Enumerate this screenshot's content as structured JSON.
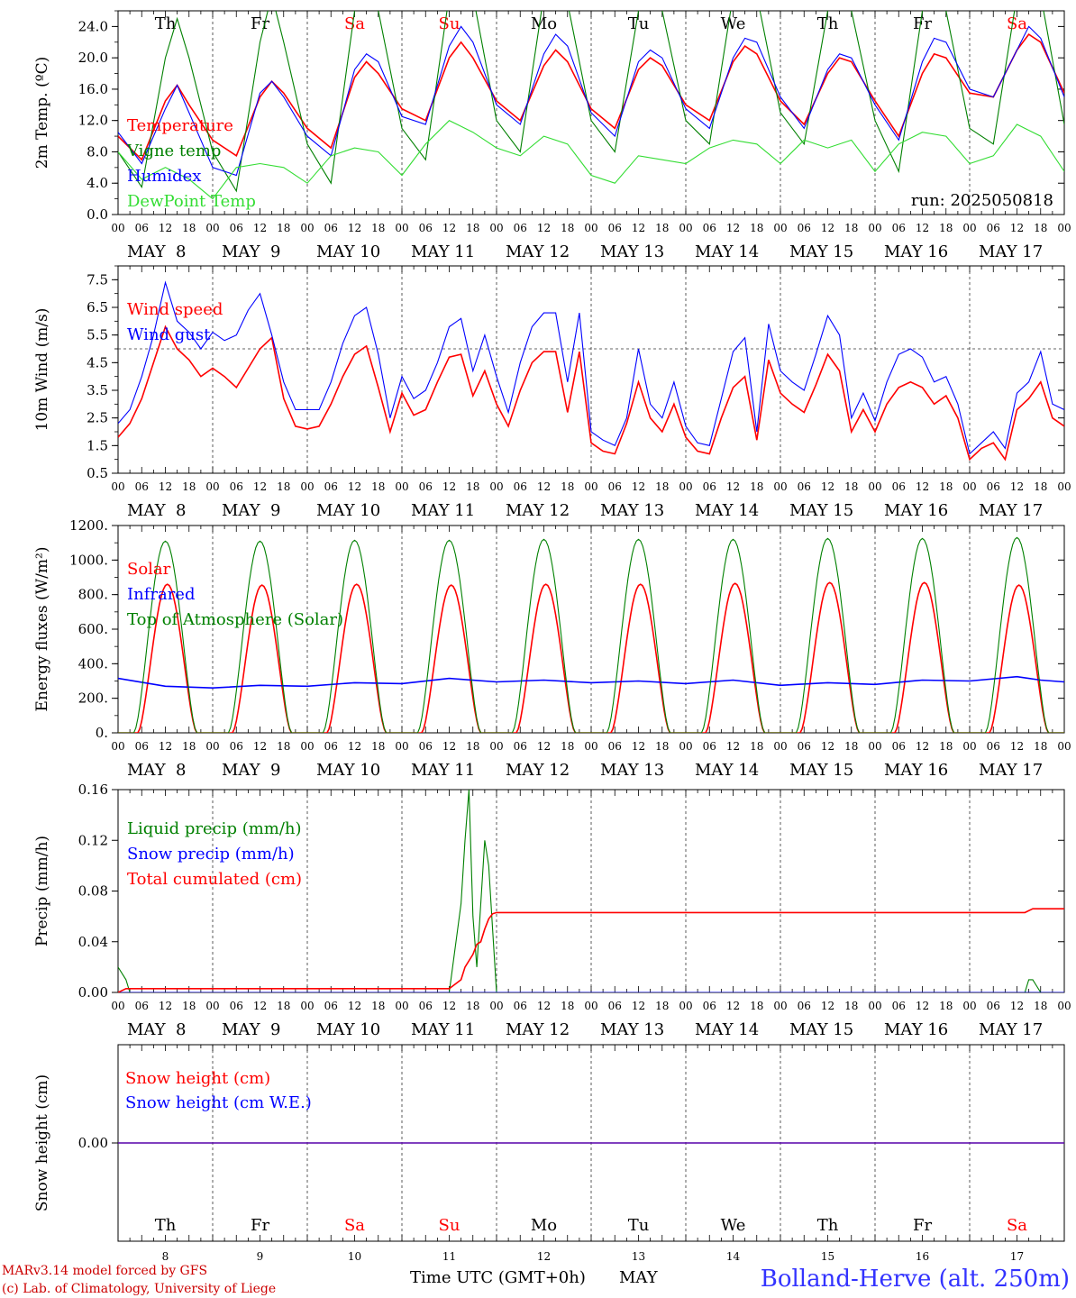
{
  "meta": {
    "run_label": "run: 2025050818",
    "footer_model": "MARv3.14 model forced by GFS",
    "footer_lab": "(c) Lab. of Climatology, University of Liege",
    "time_axis_label": "Time UTC (GMT+0h)",
    "month_label": "MAY",
    "station": "Bolland-Herve (alt. 250m)",
    "hour_labels": [
      "00",
      "06",
      "12",
      "18"
    ],
    "day_labels": [
      "MAY  8",
      "MAY  9",
      "MAY 10",
      "MAY 11",
      "MAY 12",
      "MAY 13",
      "MAY 14",
      "MAY 15",
      "MAY 16",
      "MAY 17"
    ],
    "weekdays": [
      "Th",
      "Fr",
      "Sa",
      "Su",
      "Mo",
      "Tu",
      "We",
      "Th",
      "Fr",
      "Sa"
    ],
    "weekend_flags": [
      false,
      false,
      true,
      true,
      false,
      false,
      false,
      false,
      false,
      true
    ],
    "day_numbers": [
      "8",
      "9",
      "10",
      "11",
      "12",
      "13",
      "14",
      "15",
      "16",
      "17"
    ]
  },
  "colors": {
    "red": "#ff0000",
    "green": "#008000",
    "blue": "#0000ff",
    "lightgreen": "#33dd33",
    "weekend": "#ff0000",
    "footer": "#cc0000",
    "station": "#3333ff"
  },
  "chart_data": [
    {
      "type": "line",
      "ylabel": "2m Temp. (ºC)",
      "ylim": [
        0,
        26
      ],
      "yticks": [
        0,
        4,
        8,
        12,
        16,
        20,
        24
      ],
      "ytick_labels": [
        "0.0",
        "4.0",
        "8.0",
        "12.0",
        "16.0",
        "20.0",
        "24.0"
      ],
      "x_unit": "hours since May 8 00 UTC",
      "xlim": [
        0,
        240
      ],
      "series": [
        {
          "name": "Temperature",
          "color": "red",
          "x": [
            0,
            6,
            12,
            15,
            18,
            24,
            30,
            36,
            39,
            42,
            48,
            54,
            60,
            63,
            66,
            72,
            78,
            84,
            87,
            90,
            96,
            102,
            108,
            111,
            114,
            120,
            126,
            132,
            135,
            138,
            144,
            150,
            156,
            159,
            162,
            168,
            174,
            180,
            183,
            186,
            192,
            198,
            204,
            207,
            210,
            216,
            222,
            228,
            231,
            234,
            240
          ],
          "values": [
            10.0,
            7.0,
            14.5,
            16.5,
            14.0,
            9.5,
            7.5,
            15.0,
            17.0,
            15.5,
            11.0,
            8.5,
            17.5,
            19.5,
            18.0,
            13.5,
            12.0,
            20.0,
            22.0,
            20.0,
            14.5,
            12.0,
            19.0,
            21.0,
            19.5,
            13.5,
            11.0,
            18.5,
            20.0,
            19.0,
            14.0,
            12.0,
            19.5,
            21.5,
            20.5,
            14.5,
            11.5,
            18.0,
            20.0,
            19.5,
            14.5,
            10.0,
            18.0,
            20.5,
            20.0,
            15.5,
            15.0,
            21.0,
            23.0,
            22.0,
            15.5
          ]
        },
        {
          "name": "Vigne temp",
          "color": "green",
          "x": [
            0,
            6,
            12,
            15,
            18,
            24,
            30,
            36,
            39,
            42,
            48,
            54,
            60,
            63,
            66,
            72,
            78,
            84,
            87,
            90,
            96,
            102,
            108,
            111,
            114,
            120,
            126,
            132,
            135,
            138,
            144,
            150,
            156,
            159,
            162,
            168,
            174,
            180,
            183,
            186,
            192,
            198,
            204,
            207,
            210,
            216,
            222,
            228,
            231,
            234,
            240
          ],
          "values": [
            8.0,
            3.5,
            20.0,
            25.0,
            20.0,
            8.0,
            3.0,
            22.0,
            28.0,
            22.0,
            9.0,
            4.0,
            26.0,
            30.0,
            26.0,
            11.0,
            7.0,
            28.0,
            32.0,
            28.0,
            12.0,
            8.0,
            28.0,
            31.0,
            27.0,
            12.0,
            8.0,
            26.0,
            30.0,
            26.0,
            12.0,
            9.0,
            28.0,
            32.0,
            28.0,
            13.0,
            9.0,
            26.0,
            30.0,
            26.0,
            12.0,
            5.5,
            26.0,
            30.0,
            26.0,
            11.0,
            9.0,
            28.0,
            32.0,
            28.0,
            11.5
          ]
        },
        {
          "name": "Humidex",
          "color": "blue",
          "x": [
            0,
            6,
            12,
            15,
            18,
            24,
            30,
            36,
            39,
            42,
            48,
            54,
            60,
            63,
            66,
            72,
            78,
            84,
            87,
            90,
            96,
            102,
            108,
            111,
            114,
            120,
            126,
            132,
            135,
            138,
            144,
            150,
            156,
            159,
            162,
            168,
            174,
            180,
            183,
            186,
            192,
            198,
            204,
            207,
            210,
            216,
            222,
            228,
            231,
            234,
            240
          ],
          "values": [
            10.5,
            6.5,
            13.5,
            16.5,
            13.0,
            6.0,
            5.0,
            15.5,
            17.0,
            15.0,
            10.0,
            7.5,
            18.5,
            20.5,
            19.5,
            12.5,
            11.5,
            21.5,
            24.0,
            22.0,
            14.0,
            11.5,
            20.5,
            23.0,
            21.5,
            13.0,
            10.0,
            19.5,
            21.0,
            20.0,
            13.5,
            11.0,
            20.0,
            22.5,
            22.0,
            15.0,
            11.0,
            18.5,
            20.5,
            20.0,
            14.0,
            9.5,
            19.5,
            22.5,
            22.0,
            16.0,
            15.0,
            21.0,
            24.0,
            22.5,
            15.0
          ]
        },
        {
          "name": "DewPoint Temp",
          "color": "lightgreen",
          "x": [
            0,
            6,
            12,
            18,
            24,
            30,
            36,
            42,
            48,
            54,
            60,
            66,
            72,
            78,
            84,
            90,
            96,
            102,
            108,
            114,
            120,
            126,
            132,
            138,
            144,
            150,
            156,
            162,
            168,
            174,
            180,
            186,
            192,
            198,
            204,
            210,
            216,
            222,
            228,
            234,
            240
          ],
          "values": [
            8.0,
            4.5,
            6.0,
            4.5,
            2.0,
            6.0,
            6.5,
            6.0,
            4.0,
            7.5,
            8.5,
            8.0,
            5.0,
            9.0,
            12.0,
            10.5,
            8.5,
            7.5,
            10.0,
            9.0,
            5.0,
            4.0,
            7.5,
            7.0,
            6.5,
            8.5,
            9.5,
            9.0,
            6.5,
            9.5,
            8.5,
            9.5,
            5.5,
            9.0,
            10.5,
            10.0,
            6.5,
            7.5,
            11.5,
            10.0,
            5.5
          ]
        }
      ]
    },
    {
      "type": "line",
      "ylabel": "10m Wind (m/s)",
      "ylim": [
        0.5,
        8.0
      ],
      "yticks": [
        0.5,
        1.5,
        2.5,
        3.5,
        4.5,
        5.5,
        6.5,
        7.5
      ],
      "ytick_labels": [
        "0.5",
        "1.5",
        "2.5",
        "3.5",
        "4.5",
        "5.5",
        "6.5",
        "7.5"
      ],
      "reference_line": 5.0,
      "xlim": [
        0,
        240
      ],
      "series": [
        {
          "name": "Wind speed",
          "color": "red",
          "x": [
            0,
            3,
            6,
            9,
            12,
            15,
            18,
            21,
            24,
            27,
            30,
            33,
            36,
            39,
            42,
            45,
            48,
            51,
            54,
            57,
            60,
            63,
            66,
            69,
            72,
            75,
            78,
            81,
            84,
            87,
            90,
            93,
            96,
            99,
            102,
            105,
            108,
            111,
            114,
            117,
            120,
            123,
            126,
            129,
            132,
            135,
            138,
            141,
            144,
            147,
            150,
            153,
            156,
            159,
            162,
            165,
            168,
            171,
            174,
            177,
            180,
            183,
            186,
            189,
            192,
            195,
            198,
            201,
            204,
            207,
            210,
            213,
            216,
            219,
            222,
            225,
            228,
            231,
            234,
            237,
            240
          ],
          "values": [
            1.8,
            2.3,
            3.2,
            4.5,
            5.8,
            5.0,
            4.6,
            4.0,
            4.3,
            4.0,
            3.6,
            4.3,
            5.0,
            5.4,
            3.2,
            2.2,
            2.1,
            2.2,
            3.0,
            4.0,
            4.8,
            5.1,
            3.6,
            2.0,
            3.4,
            2.6,
            2.8,
            3.8,
            4.7,
            4.8,
            3.3,
            4.2,
            3.0,
            2.2,
            3.5,
            4.5,
            4.9,
            4.9,
            2.7,
            4.9,
            1.6,
            1.3,
            1.2,
            2.3,
            3.8,
            2.5,
            2.0,
            3.0,
            1.8,
            1.3,
            1.2,
            2.5,
            3.6,
            4.0,
            1.7,
            4.6,
            3.4,
            3.0,
            2.7,
            3.7,
            4.8,
            4.2,
            2.0,
            2.8,
            2.0,
            3.0,
            3.6,
            3.8,
            3.6,
            3.0,
            3.3,
            2.5,
            1.0,
            1.4,
            1.6,
            1.0,
            2.8,
            3.2,
            3.8,
            2.5,
            2.2
          ]
        },
        {
          "name": "Wind gust",
          "color": "blue",
          "x": [
            0,
            3,
            6,
            9,
            12,
            15,
            18,
            21,
            24,
            27,
            30,
            33,
            36,
            39,
            42,
            45,
            48,
            51,
            54,
            57,
            60,
            63,
            66,
            69,
            72,
            75,
            78,
            81,
            84,
            87,
            90,
            93,
            96,
            99,
            102,
            105,
            108,
            111,
            114,
            117,
            120,
            123,
            126,
            129,
            132,
            135,
            138,
            141,
            144,
            147,
            150,
            153,
            156,
            159,
            162,
            165,
            168,
            171,
            174,
            177,
            180,
            183,
            186,
            189,
            192,
            195,
            198,
            201,
            204,
            207,
            210,
            213,
            216,
            219,
            222,
            225,
            228,
            231,
            234,
            237,
            240
          ],
          "values": [
            2.3,
            2.8,
            4.0,
            5.5,
            7.4,
            6.0,
            5.6,
            5.0,
            5.6,
            5.3,
            5.5,
            6.4,
            7.0,
            5.5,
            3.8,
            2.8,
            2.8,
            2.8,
            3.8,
            5.2,
            6.2,
            6.5,
            4.8,
            2.5,
            4.0,
            3.2,
            3.5,
            4.5,
            5.8,
            6.1,
            4.2,
            5.5,
            4.0,
            2.7,
            4.5,
            5.8,
            6.3,
            6.3,
            3.8,
            6.3,
            2.0,
            1.7,
            1.5,
            2.5,
            5.0,
            3.0,
            2.5,
            3.8,
            2.2,
            1.6,
            1.5,
            3.2,
            4.9,
            5.4,
            2.0,
            5.9,
            4.2,
            3.8,
            3.5,
            4.8,
            6.2,
            5.5,
            2.5,
            3.4,
            2.4,
            3.8,
            4.8,
            5.0,
            4.7,
            3.8,
            4.0,
            3.0,
            1.2,
            1.6,
            2.0,
            1.4,
            3.4,
            3.8,
            4.9,
            3.0,
            2.8
          ]
        }
      ]
    },
    {
      "type": "line",
      "ylabel": "Energy fluxes (W/m²)",
      "ylim": [
        0,
        1200
      ],
      "yticks": [
        0,
        200,
        400,
        600,
        800,
        1000,
        1200
      ],
      "ytick_labels": [
        "0.",
        "200.",
        "400.",
        "600.",
        "800.",
        "1000.",
        "1200."
      ],
      "xlim": [
        0,
        240
      ],
      "series": [
        {
          "name": "Solar",
          "color": "red",
          "daily_peak": [
            860,
            855,
            860,
            855,
            860,
            860,
            865,
            870,
            870,
            855
          ],
          "day_start_hour": 5,
          "day_end_hour": 20
        },
        {
          "name": "Infrared",
          "color": "blue",
          "x": [
            0,
            12,
            24,
            36,
            48,
            60,
            72,
            84,
            96,
            108,
            120,
            132,
            144,
            156,
            168,
            180,
            192,
            204,
            216,
            228,
            234,
            240
          ],
          "values": [
            315,
            270,
            260,
            275,
            270,
            290,
            285,
            315,
            295,
            305,
            290,
            300,
            285,
            305,
            275,
            290,
            280,
            305,
            300,
            325,
            305,
            295
          ]
        },
        {
          "name": "Top of Atmosphere (Solar)",
          "color": "green",
          "daily_peak": [
            1110,
            1110,
            1115,
            1115,
            1120,
            1120,
            1120,
            1125,
            1125,
            1130
          ],
          "day_start_hour": 4,
          "day_end_hour": 20
        }
      ]
    },
    {
      "type": "line",
      "ylabel": "Precip (mm/h)",
      "ylim": [
        0,
        0.16
      ],
      "yticks": [
        0,
        0.04,
        0.08,
        0.12,
        0.16
      ],
      "ytick_labels": [
        "0.00",
        "0.04",
        "0.08",
        "0.12",
        "0.16"
      ],
      "xlim": [
        0,
        240
      ],
      "series": [
        {
          "name": "Liquid precip (mm/h)",
          "color": "green",
          "x": [
            0,
            2,
            3,
            84,
            87,
            88,
            89,
            90,
            91,
            93,
            94,
            95,
            96,
            97,
            230,
            231,
            232,
            233,
            234,
            240
          ],
          "values": [
            0.02,
            0.01,
            0,
            0,
            0.07,
            0.12,
            0.16,
            0.06,
            0.02,
            0.12,
            0.1,
            0.05,
            0,
            0,
            0,
            0.01,
            0.01,
            0.005,
            0,
            0
          ]
        },
        {
          "name": "Snow precip (mm/h)",
          "color": "blue",
          "x": [
            0,
            240
          ],
          "values": [
            0,
            0
          ]
        },
        {
          "name": "Total cumulated (cm)",
          "color": "red",
          "x": [
            0,
            2,
            84,
            87,
            88,
            90,
            91,
            92,
            93,
            94,
            95,
            96,
            230,
            232,
            240
          ],
          "values": [
            0,
            0.003,
            0.003,
            0.01,
            0.02,
            0.03,
            0.038,
            0.04,
            0.05,
            0.058,
            0.062,
            0.063,
            0.063,
            0.066,
            0.066
          ]
        }
      ]
    },
    {
      "type": "line",
      "ylabel": "Snow height (cm)",
      "ylim": [
        -1,
        1
      ],
      "yticks": [
        0
      ],
      "ytick_labels": [
        "0.00"
      ],
      "xlim": [
        0,
        240
      ],
      "series": [
        {
          "name": "Snow height (cm)",
          "color": "red",
          "x": [
            0,
            240
          ],
          "values": [
            0,
            0
          ]
        },
        {
          "name": "Snow height (cm W.E.)",
          "color": "blue",
          "x": [
            0,
            240
          ],
          "values": [
            0,
            0
          ]
        }
      ]
    }
  ]
}
